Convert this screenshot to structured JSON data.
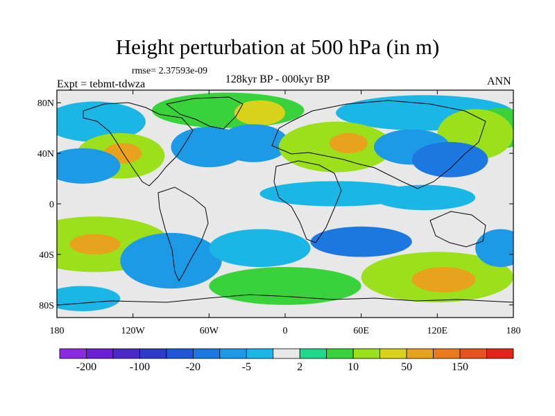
{
  "title": "Height perturbation at 500 hPa (in m)",
  "rmse_label": "rmse= 2.37593e-09",
  "expt_label": "Expt = tebmt-tdwza",
  "period_label": "128kyr BP - 000kyr BP",
  "season_label": "ANN",
  "axes": {
    "lat_ticks": [
      {
        "value": 80,
        "label": "80N"
      },
      {
        "value": 40,
        "label": "40N"
      },
      {
        "value": 0,
        "label": "0"
      },
      {
        "value": -40,
        "label": "40S"
      },
      {
        "value": -80,
        "label": "80S"
      }
    ],
    "lon_ticks": [
      {
        "value": -180,
        "label": "180"
      },
      {
        "value": -120,
        "label": "120W"
      },
      {
        "value": -60,
        "label": "60W"
      },
      {
        "value": 0,
        "label": "0"
      },
      {
        "value": 60,
        "label": "60E"
      },
      {
        "value": 120,
        "label": "120E"
      },
      {
        "value": 180,
        "label": "180"
      }
    ]
  },
  "colorbar": {
    "colors": [
      "#8a2be2",
      "#6a1fd6",
      "#4b28c8",
      "#2e3ac8",
      "#1f56d8",
      "#1c78e0",
      "#1c9ae6",
      "#19b6e6",
      "#e8e8e8",
      "#1ed98a",
      "#3ad23a",
      "#9be01a",
      "#d8d21c",
      "#e8a21c",
      "#ea7a1e",
      "#e8521e",
      "#e3241a"
    ],
    "labels": [
      {
        "value": "-200",
        "between": 1
      },
      {
        "value": "-100",
        "between": 3
      },
      {
        "value": "-20",
        "between": 5
      },
      {
        "value": "-5",
        "between": 7
      },
      {
        "value": "2",
        "between": 9
      },
      {
        "value": "10",
        "between": 11
      },
      {
        "value": "50",
        "between": 13
      },
      {
        "value": "150",
        "between": 15
      }
    ]
  },
  "field": {
    "background": "#e8e8e8",
    "anomalies": [
      {
        "lon": -45,
        "lat": 74,
        "rx": 60,
        "ry": 14,
        "level": 10
      },
      {
        "lon": -20,
        "lat": 72,
        "rx": 20,
        "ry": 10,
        "level": 12
      },
      {
        "lon": 110,
        "lat": 72,
        "rx": 70,
        "ry": 14,
        "level": 7
      },
      {
        "lon": -150,
        "lat": 65,
        "rx": 40,
        "ry": 16,
        "level": 7
      },
      {
        "lon": 170,
        "lat": 60,
        "rx": 25,
        "ry": 16,
        "level": 10
      },
      {
        "lon": 150,
        "lat": 55,
        "rx": 30,
        "ry": 20,
        "level": 11
      },
      {
        "lon": -130,
        "lat": 38,
        "rx": 35,
        "ry": 18,
        "level": 11
      },
      {
        "lon": -128,
        "lat": 40,
        "rx": 15,
        "ry": 8,
        "level": 13
      },
      {
        "lon": -60,
        "lat": 45,
        "rx": 30,
        "ry": 16,
        "level": 6
      },
      {
        "lon": -25,
        "lat": 48,
        "rx": 28,
        "ry": 15,
        "level": 6
      },
      {
        "lon": 40,
        "lat": 45,
        "rx": 45,
        "ry": 20,
        "level": 11
      },
      {
        "lon": 50,
        "lat": 48,
        "rx": 15,
        "ry": 8,
        "level": 13
      },
      {
        "lon": 100,
        "lat": 45,
        "rx": 30,
        "ry": 14,
        "level": 6
      },
      {
        "lon": 130,
        "lat": 35,
        "rx": 30,
        "ry": 14,
        "level": 5
      },
      {
        "lon": -160,
        "lat": 30,
        "rx": 30,
        "ry": 14,
        "level": 6
      },
      {
        "lon": 40,
        "lat": 8,
        "rx": 60,
        "ry": 10,
        "level": 7
      },
      {
        "lon": 110,
        "lat": 5,
        "rx": 40,
        "ry": 10,
        "level": 7
      },
      {
        "lon": -150,
        "lat": -32,
        "rx": 60,
        "ry": 22,
        "level": 11
      },
      {
        "lon": -150,
        "lat": -32,
        "rx": 20,
        "ry": 8,
        "level": 13
      },
      {
        "lon": -90,
        "lat": -45,
        "rx": 40,
        "ry": 22,
        "level": 6
      },
      {
        "lon": -20,
        "lat": -35,
        "rx": 40,
        "ry": 15,
        "level": 7
      },
      {
        "lon": 60,
        "lat": -30,
        "rx": 40,
        "ry": 12,
        "level": 5
      },
      {
        "lon": 120,
        "lat": -58,
        "rx": 60,
        "ry": 20,
        "level": 11
      },
      {
        "lon": 125,
        "lat": -60,
        "rx": 25,
        "ry": 10,
        "level": 13
      },
      {
        "lon": 0,
        "lat": -65,
        "rx": 60,
        "ry": 15,
        "level": 10
      },
      {
        "lon": -160,
        "lat": -75,
        "rx": 30,
        "ry": 10,
        "level": 7
      },
      {
        "lon": 170,
        "lat": -35,
        "rx": 20,
        "ry": 15,
        "level": 6
      }
    ]
  }
}
